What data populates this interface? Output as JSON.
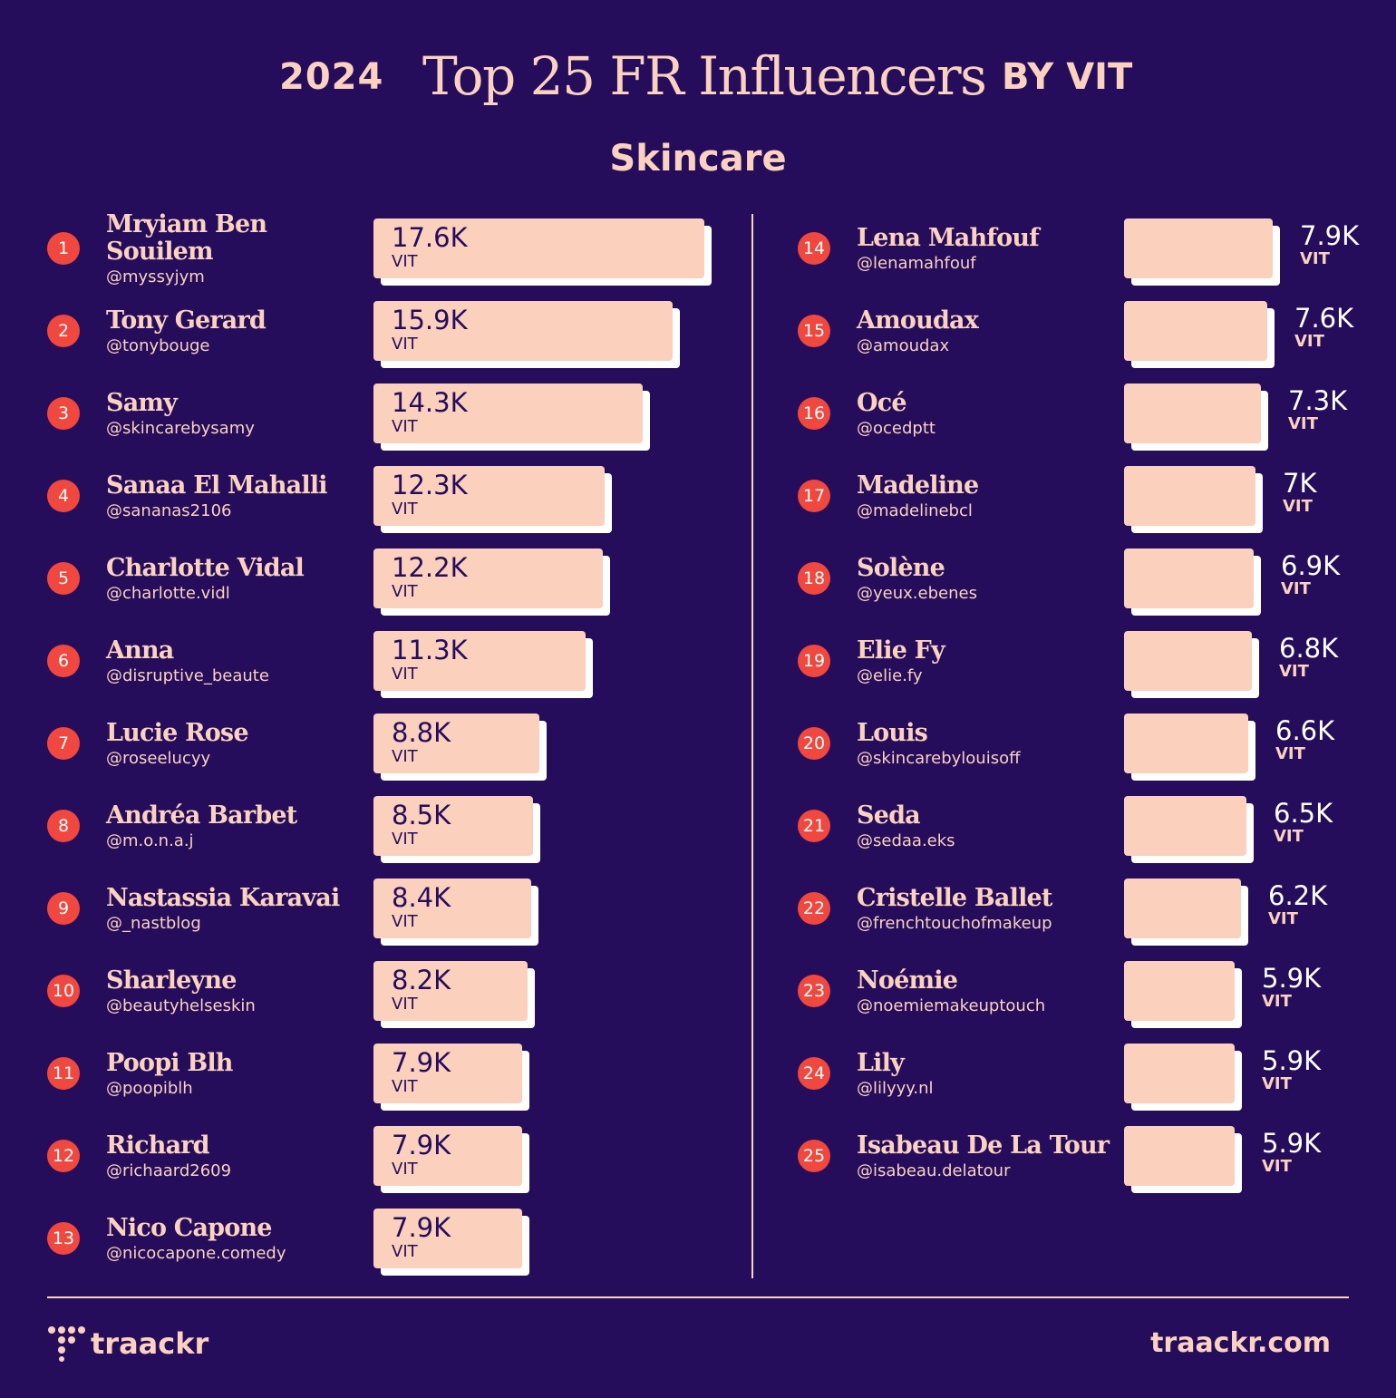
{
  "header": {
    "year": "2024",
    "title": "Top 25 FR Influencers",
    "byline": "BY VIT",
    "subtitle": "Skincare"
  },
  "colors": {
    "background": "#250d5c",
    "accent": "#fbd2bf",
    "rank_badge": "#f0473e"
  },
  "chart_data": {
    "type": "bar",
    "orientation": "horizontal",
    "title": "Top 25 FR Influencers",
    "subtitle": "Skincare",
    "unit_label": "VIT",
    "categories": [
      "Mryiam Ben Souilem",
      "Tony Gerard",
      "Samy",
      "Sanaa El Mahalli",
      "Charlotte Vidal",
      "Anna",
      "Lucie Rose",
      "Andréa Barbet",
      "Nastassia Karavai",
      "Sharleyne",
      "Poopi Blh",
      "Richard",
      "Nico Capone",
      "Lena Mahfouf",
      "Amoudax",
      "Océ",
      "Madeline",
      "Solène",
      "Elie Fy",
      "Louis",
      "Seda",
      "Cristelle Ballet",
      "Noémie",
      "Lily",
      "Isabeau De La Tour"
    ],
    "values": [
      17600,
      15900,
      14300,
      12300,
      12200,
      11300,
      8800,
      8500,
      8400,
      8200,
      7900,
      7900,
      7900,
      7900,
      7600,
      7300,
      7000,
      6900,
      6800,
      6600,
      6500,
      6200,
      5900,
      5900,
      5900
    ],
    "items": [
      {
        "rank": "1",
        "name": "Mryiam Ben Souilem",
        "handle": "@myssyjym",
        "value": 17600,
        "label": "17.6K",
        "unit": "VIT"
      },
      {
        "rank": "2",
        "name": "Tony Gerard",
        "handle": "@tonybouge",
        "value": 15900,
        "label": "15.9K",
        "unit": "VIT"
      },
      {
        "rank": "3",
        "name": "Samy",
        "handle": "@skincarebysamy",
        "value": 14300,
        "label": "14.3K",
        "unit": "VIT"
      },
      {
        "rank": "4",
        "name": "Sanaa El Mahalli",
        "handle": "@sananas2106",
        "value": 12300,
        "label": "12.3K",
        "unit": "VIT"
      },
      {
        "rank": "5",
        "name": "Charlotte Vidal",
        "handle": "@charlotte.vidl",
        "value": 12200,
        "label": "12.2K",
        "unit": "VIT"
      },
      {
        "rank": "6",
        "name": "Anna",
        "handle": "@disruptive_beaute",
        "value": 11300,
        "label": "11.3K",
        "unit": "VIT"
      },
      {
        "rank": "7",
        "name": "Lucie Rose",
        "handle": "@roseelucyy",
        "value": 8800,
        "label": "8.8K",
        "unit": "VIT"
      },
      {
        "rank": "8",
        "name": "Andréa Barbet",
        "handle": "@m.o.n.a.j",
        "value": 8500,
        "label": "8.5K",
        "unit": "VIT"
      },
      {
        "rank": "9",
        "name": "Nastassia Karavai",
        "handle": "@_nastblog",
        "value": 8400,
        "label": "8.4K",
        "unit": "VIT"
      },
      {
        "rank": "10",
        "name": "Sharleyne",
        "handle": "@beautyhelseskin",
        "value": 8200,
        "label": "8.2K",
        "unit": "VIT"
      },
      {
        "rank": "11",
        "name": "Poopi Blh",
        "handle": "@poopiblh",
        "value": 7900,
        "label": "7.9K",
        "unit": "VIT"
      },
      {
        "rank": "12",
        "name": "Richard",
        "handle": "@richaard2609",
        "value": 7900,
        "label": "7.9K",
        "unit": "VIT"
      },
      {
        "rank": "13",
        "name": "Nico Capone",
        "handle": "@nicocapone.comedy",
        "value": 7900,
        "label": "7.9K",
        "unit": "VIT"
      },
      {
        "rank": "14",
        "name": "Lena Mahfouf",
        "handle": "@lenamahfouf",
        "value": 7900,
        "label": "7.9K",
        "unit": "VIT"
      },
      {
        "rank": "15",
        "name": "Amoudax",
        "handle": "@amoudax",
        "value": 7600,
        "label": "7.6K",
        "unit": "VIT"
      },
      {
        "rank": "16",
        "name": "Océ",
        "handle": "@ocedptt",
        "value": 7300,
        "label": "7.3K",
        "unit": "VIT"
      },
      {
        "rank": "17",
        "name": "Madeline",
        "handle": "@madelinebcl",
        "value": 7000,
        "label": "7K",
        "unit": "VIT"
      },
      {
        "rank": "18",
        "name": "Solène",
        "handle": "@yeux.ebenes",
        "value": 6900,
        "label": "6.9K",
        "unit": "VIT"
      },
      {
        "rank": "19",
        "name": "Elie Fy",
        "handle": "@elie.fy",
        "value": 6800,
        "label": "6.8K",
        "unit": "VIT"
      },
      {
        "rank": "20",
        "name": "Louis",
        "handle": "@skincarebylouisoff",
        "value": 6600,
        "label": "6.6K",
        "unit": "VIT"
      },
      {
        "rank": "21",
        "name": "Seda",
        "handle": "@sedaa.eks",
        "value": 6500,
        "label": "6.5K",
        "unit": "VIT"
      },
      {
        "rank": "22",
        "name": "Cristelle Ballet",
        "handle": "@frenchtouchofmakeup",
        "value": 6200,
        "label": "6.2K",
        "unit": "VIT"
      },
      {
        "rank": "23",
        "name": "Noémie",
        "handle": "@noemiemakeuptouch",
        "value": 5900,
        "label": "5.9K",
        "unit": "VIT"
      },
      {
        "rank": "24",
        "name": "Lily",
        "handle": "@lilyyy.nl",
        "value": 5900,
        "label": "5.9K",
        "unit": "VIT"
      },
      {
        "rank": "25",
        "name": "Isabeau De La Tour",
        "handle": "@isabeau.delatour",
        "value": 5900,
        "label": "5.9K",
        "unit": "VIT"
      }
    ]
  },
  "footer": {
    "logo_text": "traackr",
    "logo_icon": "traackr-logo-icon",
    "url": "traackr.com"
  }
}
